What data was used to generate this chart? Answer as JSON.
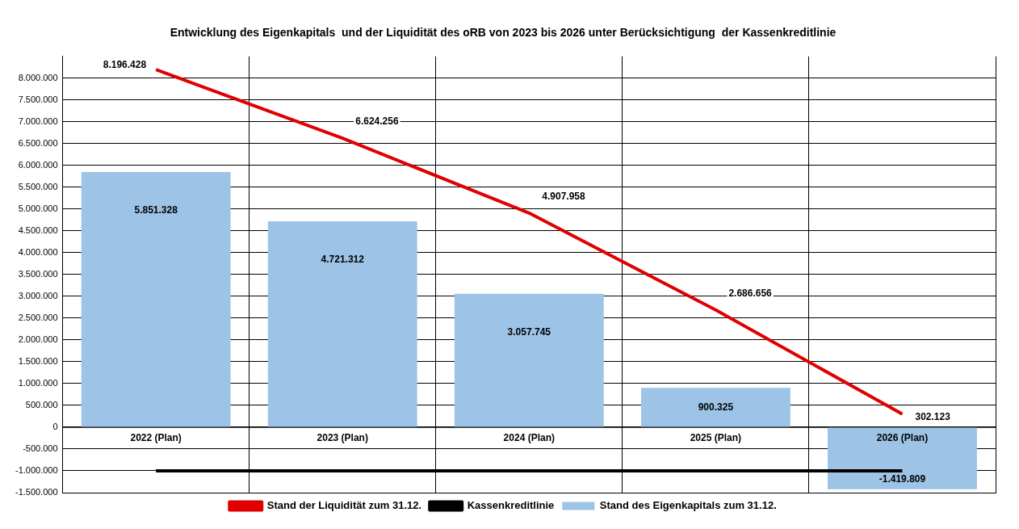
{
  "chart_data": {
    "type": "bar",
    "title": "Entwicklung des Eigenkapitals  und der Liquidität des oRB von 2023 bis 2026 unter Berücksichtigung  der Kassenkreditlinie",
    "categories": [
      "2022 (Plan)",
      "2023 (Plan)",
      "2024 (Plan)",
      "2025 (Plan)",
      "2026 (Plan)"
    ],
    "series": [
      {
        "name": "Stand des Eigenkapitals zum 31.12.",
        "color": "#9dc3e6",
        "values": [
          5851328,
          4721312,
          3057745,
          900325,
          -1419809
        ],
        "value_labels": [
          "5.851.328",
          "4.721.312",
          "3.057.745",
          "900.325",
          "-1.419.809"
        ]
      },
      {
        "name": "Stand der Liquidität zum 31.12.",
        "type": "line",
        "color": "#e00000",
        "values": [
          8196428,
          6624256,
          4907958,
          2686656,
          302123
        ],
        "value_labels": [
          "8.196.428",
          "6.624.256",
          "4.907.958",
          "2.686.656",
          "302.123"
        ]
      },
      {
        "name": "Kassenkreditlinie",
        "type": "line",
        "color": "#000000",
        "values": [
          -1000000,
          -1000000,
          -1000000,
          -1000000,
          -1000000
        ]
      }
    ],
    "ylim": [
      -1500000,
      8500000
    ],
    "yticks": [
      {
        "value": -1500000,
        "label": "-1.500.000"
      },
      {
        "value": -1000000,
        "label": "-1.000.000"
      },
      {
        "value": -500000,
        "label": "-500.000"
      },
      0,
      {
        "value": 500000,
        "label": "500.000"
      },
      {
        "value": 1000000,
        "label": "1.000.000"
      },
      {
        "value": 1500000,
        "label": "1.500.000"
      },
      {
        "value": 2000000,
        "label": "2.000.000"
      },
      {
        "value": 2500000,
        "label": "2.500.000"
      },
      {
        "value": 3000000,
        "label": "3.000.000"
      },
      {
        "value": 3500000,
        "label": "3.500.000"
      },
      {
        "value": 4000000,
        "label": "4.000.000"
      },
      {
        "value": 4500000,
        "label": "4.500.000"
      },
      {
        "value": 5000000,
        "label": "5.000.000"
      },
      {
        "value": 5500000,
        "label": "5.500.000"
      },
      {
        "value": 6000000,
        "label": "6.000.000"
      },
      {
        "value": 6500000,
        "label": "6.500.000"
      },
      {
        "value": 7000000,
        "label": "7.000.000"
      },
      {
        "value": 7500000,
        "label": "7.500.000"
      },
      {
        "value": 8000000,
        "label": "8.000.000"
      }
    ],
    "grid": true,
    "legend": "bottom"
  }
}
